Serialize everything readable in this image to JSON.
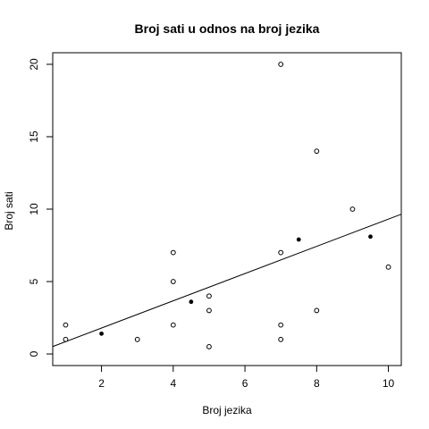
{
  "chart_data": {
    "type": "scatter",
    "title": "Broj sati u odnos na broj jezika",
    "xlabel": "Broj jezika",
    "ylabel": "Broj sati",
    "xlim": [
      0.64,
      10.36
    ],
    "ylim": [
      -0.8,
      20.8
    ],
    "xticks": [
      2,
      4,
      6,
      8,
      10
    ],
    "yticks": [
      0,
      5,
      10,
      15,
      20
    ],
    "grid": false,
    "legend": "none",
    "points_open": [
      {
        "x": 1,
        "y": 2
      },
      {
        "x": 1,
        "y": 1
      },
      {
        "x": 3,
        "y": 1
      },
      {
        "x": 4,
        "y": 7
      },
      {
        "x": 4,
        "y": 5
      },
      {
        "x": 4,
        "y": 2
      },
      {
        "x": 5,
        "y": 4
      },
      {
        "x": 5,
        "y": 3
      },
      {
        "x": 5,
        "y": 0.5
      },
      {
        "x": 7,
        "y": 20
      },
      {
        "x": 7,
        "y": 7
      },
      {
        "x": 7,
        "y": 2
      },
      {
        "x": 7,
        "y": 1
      },
      {
        "x": 8,
        "y": 14
      },
      {
        "x": 8,
        "y": 3
      },
      {
        "x": 9,
        "y": 10
      },
      {
        "x": 10,
        "y": 6
      }
    ],
    "points_filled": [
      {
        "x": 2,
        "y": 1.4
      },
      {
        "x": 4.5,
        "y": 3.6
      },
      {
        "x": 7.5,
        "y": 7.9
      },
      {
        "x": 9.5,
        "y": 8.1
      }
    ],
    "regression_line": {
      "intercept": -0.09,
      "slope": 0.94
    }
  }
}
